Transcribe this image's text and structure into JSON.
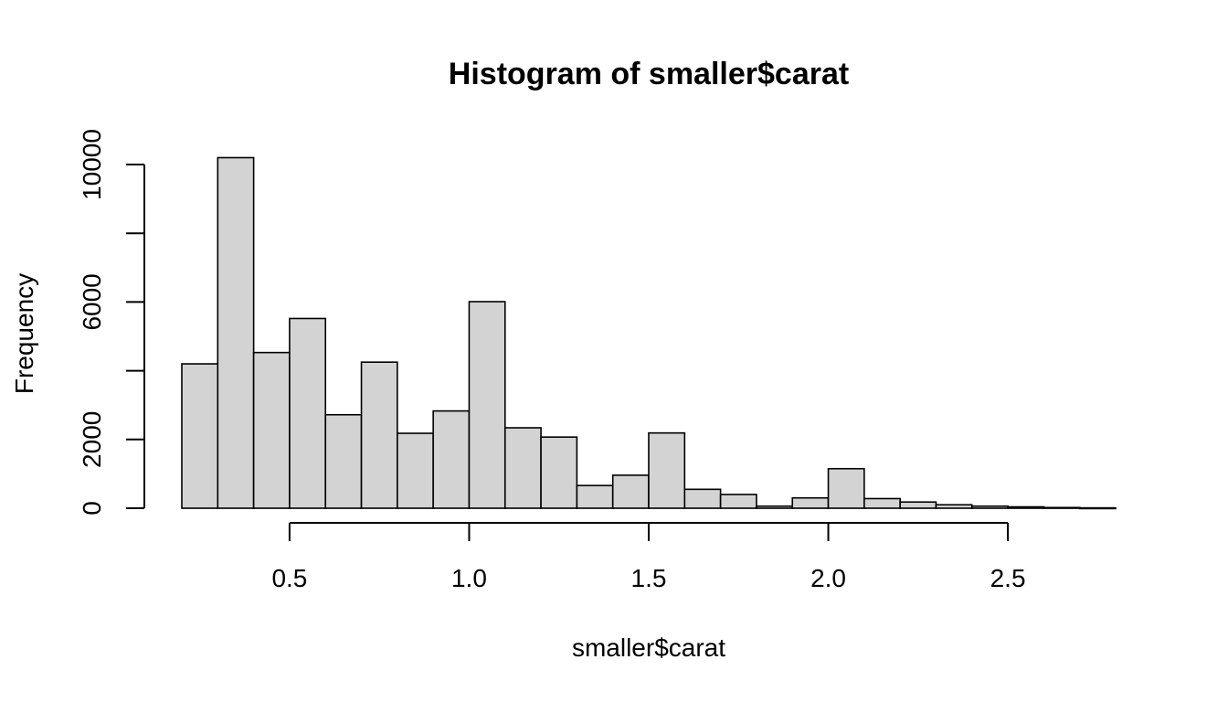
{
  "chart_data": {
    "type": "bar",
    "title": "Histogram of smaller$carat",
    "xlabel": "smaller$carat",
    "ylabel": "Frequency",
    "bar_color": "#d3d3d3",
    "border_color": "#000000",
    "bins": [
      {
        "start": 0.2,
        "end": 0.3,
        "value": 4200
      },
      {
        "start": 0.3,
        "end": 0.4,
        "value": 10200
      },
      {
        "start": 0.4,
        "end": 0.5,
        "value": 4530
      },
      {
        "start": 0.5,
        "end": 0.6,
        "value": 5520
      },
      {
        "start": 0.6,
        "end": 0.7,
        "value": 2720
      },
      {
        "start": 0.7,
        "end": 0.8,
        "value": 4250
      },
      {
        "start": 0.8,
        "end": 0.9,
        "value": 2180
      },
      {
        "start": 0.9,
        "end": 1.0,
        "value": 2830
      },
      {
        "start": 1.0,
        "end": 1.1,
        "value": 6010
      },
      {
        "start": 1.1,
        "end": 1.2,
        "value": 2340
      },
      {
        "start": 1.2,
        "end": 1.3,
        "value": 2070
      },
      {
        "start": 1.3,
        "end": 1.4,
        "value": 660
      },
      {
        "start": 1.4,
        "end": 1.5,
        "value": 960
      },
      {
        "start": 1.5,
        "end": 1.6,
        "value": 2190
      },
      {
        "start": 1.6,
        "end": 1.7,
        "value": 550
      },
      {
        "start": 1.7,
        "end": 1.8,
        "value": 400
      },
      {
        "start": 1.8,
        "end": 1.9,
        "value": 60
      },
      {
        "start": 1.9,
        "end": 2.0,
        "value": 300
      },
      {
        "start": 2.0,
        "end": 2.1,
        "value": 1150
      },
      {
        "start": 2.1,
        "end": 2.2,
        "value": 280
      },
      {
        "start": 2.2,
        "end": 2.3,
        "value": 180
      },
      {
        "start": 2.3,
        "end": 2.4,
        "value": 100
      },
      {
        "start": 2.4,
        "end": 2.5,
        "value": 60
      },
      {
        "start": 2.5,
        "end": 2.6,
        "value": 40
      },
      {
        "start": 2.6,
        "end": 2.7,
        "value": 20
      },
      {
        "start": 2.7,
        "end": 2.8,
        "value": 10
      }
    ],
    "xlim": [
      0.2,
      2.8
    ],
    "ylim": [
      0,
      10400
    ],
    "x_ticks": [
      0.5,
      1.0,
      1.5,
      2.0,
      2.5
    ],
    "x_tick_labels": [
      "0.5",
      "1.0",
      "1.5",
      "2.0",
      "2.5"
    ],
    "y_ticks": [
      0,
      2000,
      4000,
      6000,
      8000,
      10000
    ],
    "y_tick_labels": [
      "0",
      "2000",
      "",
      "6000",
      "",
      "10000"
    ],
    "grid": false,
    "legend": "none"
  }
}
